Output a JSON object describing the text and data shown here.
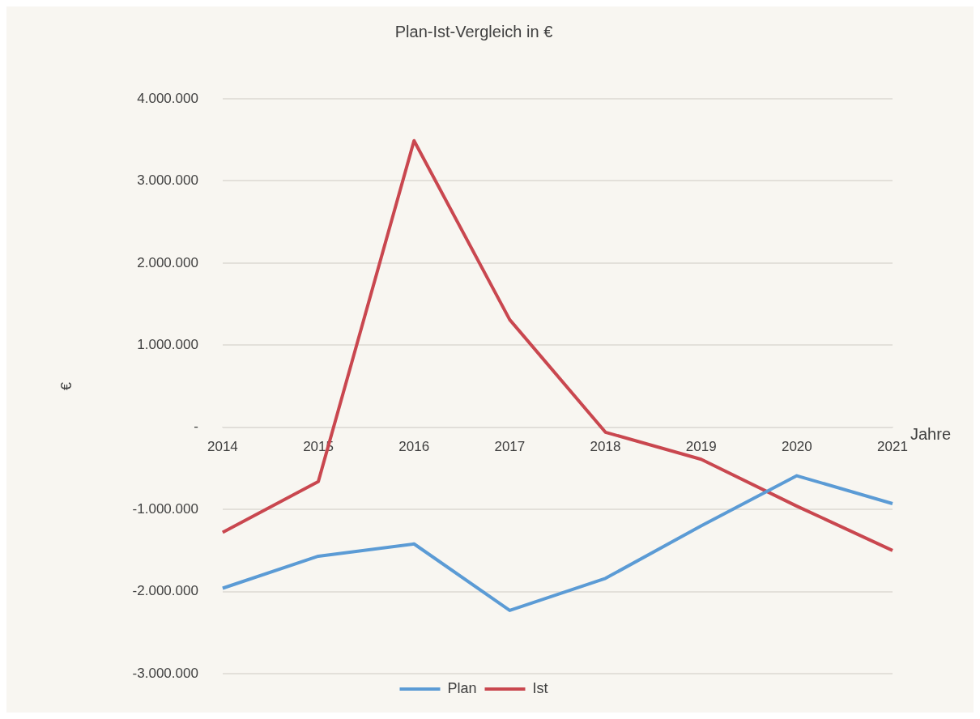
{
  "chart_data": {
    "type": "line",
    "title": "Plan-Ist-Vergleich in €",
    "xlabel": "Jahre",
    "ylabel": "€",
    "categories": [
      "2014",
      "2015",
      "2016",
      "2017",
      "2018",
      "2019",
      "2020",
      "2021"
    ],
    "series": [
      {
        "name": "Plan",
        "color": "#5b9bd5",
        "values": [
          -1960000,
          -1570000,
          -1420000,
          -2230000,
          -1840000,
          -1200000,
          -590000,
          -930000
        ]
      },
      {
        "name": "Ist",
        "color": "#c9474f",
        "values": [
          -1280000,
          -660000,
          3490000,
          1310000,
          -60000,
          -390000,
          -960000,
          -1500000
        ]
      }
    ],
    "ylim": [
      -3000000,
      4000000
    ],
    "yticks": [
      {
        "value": -3000000,
        "label": "-3.000.000"
      },
      {
        "value": -2000000,
        "label": "-2.000.000"
      },
      {
        "value": -1000000,
        "label": "-1.000.000"
      },
      {
        "value": 0,
        "label": "-"
      },
      {
        "value": 1000000,
        "label": "1.000.000"
      },
      {
        "value": 2000000,
        "label": "2.000.000"
      },
      {
        "value": 3000000,
        "label": "3.000.000"
      },
      {
        "value": 4000000,
        "label": "4.000.000"
      }
    ],
    "grid": "y",
    "legend": "bottom",
    "marker": "none",
    "line_style": "solid"
  }
}
